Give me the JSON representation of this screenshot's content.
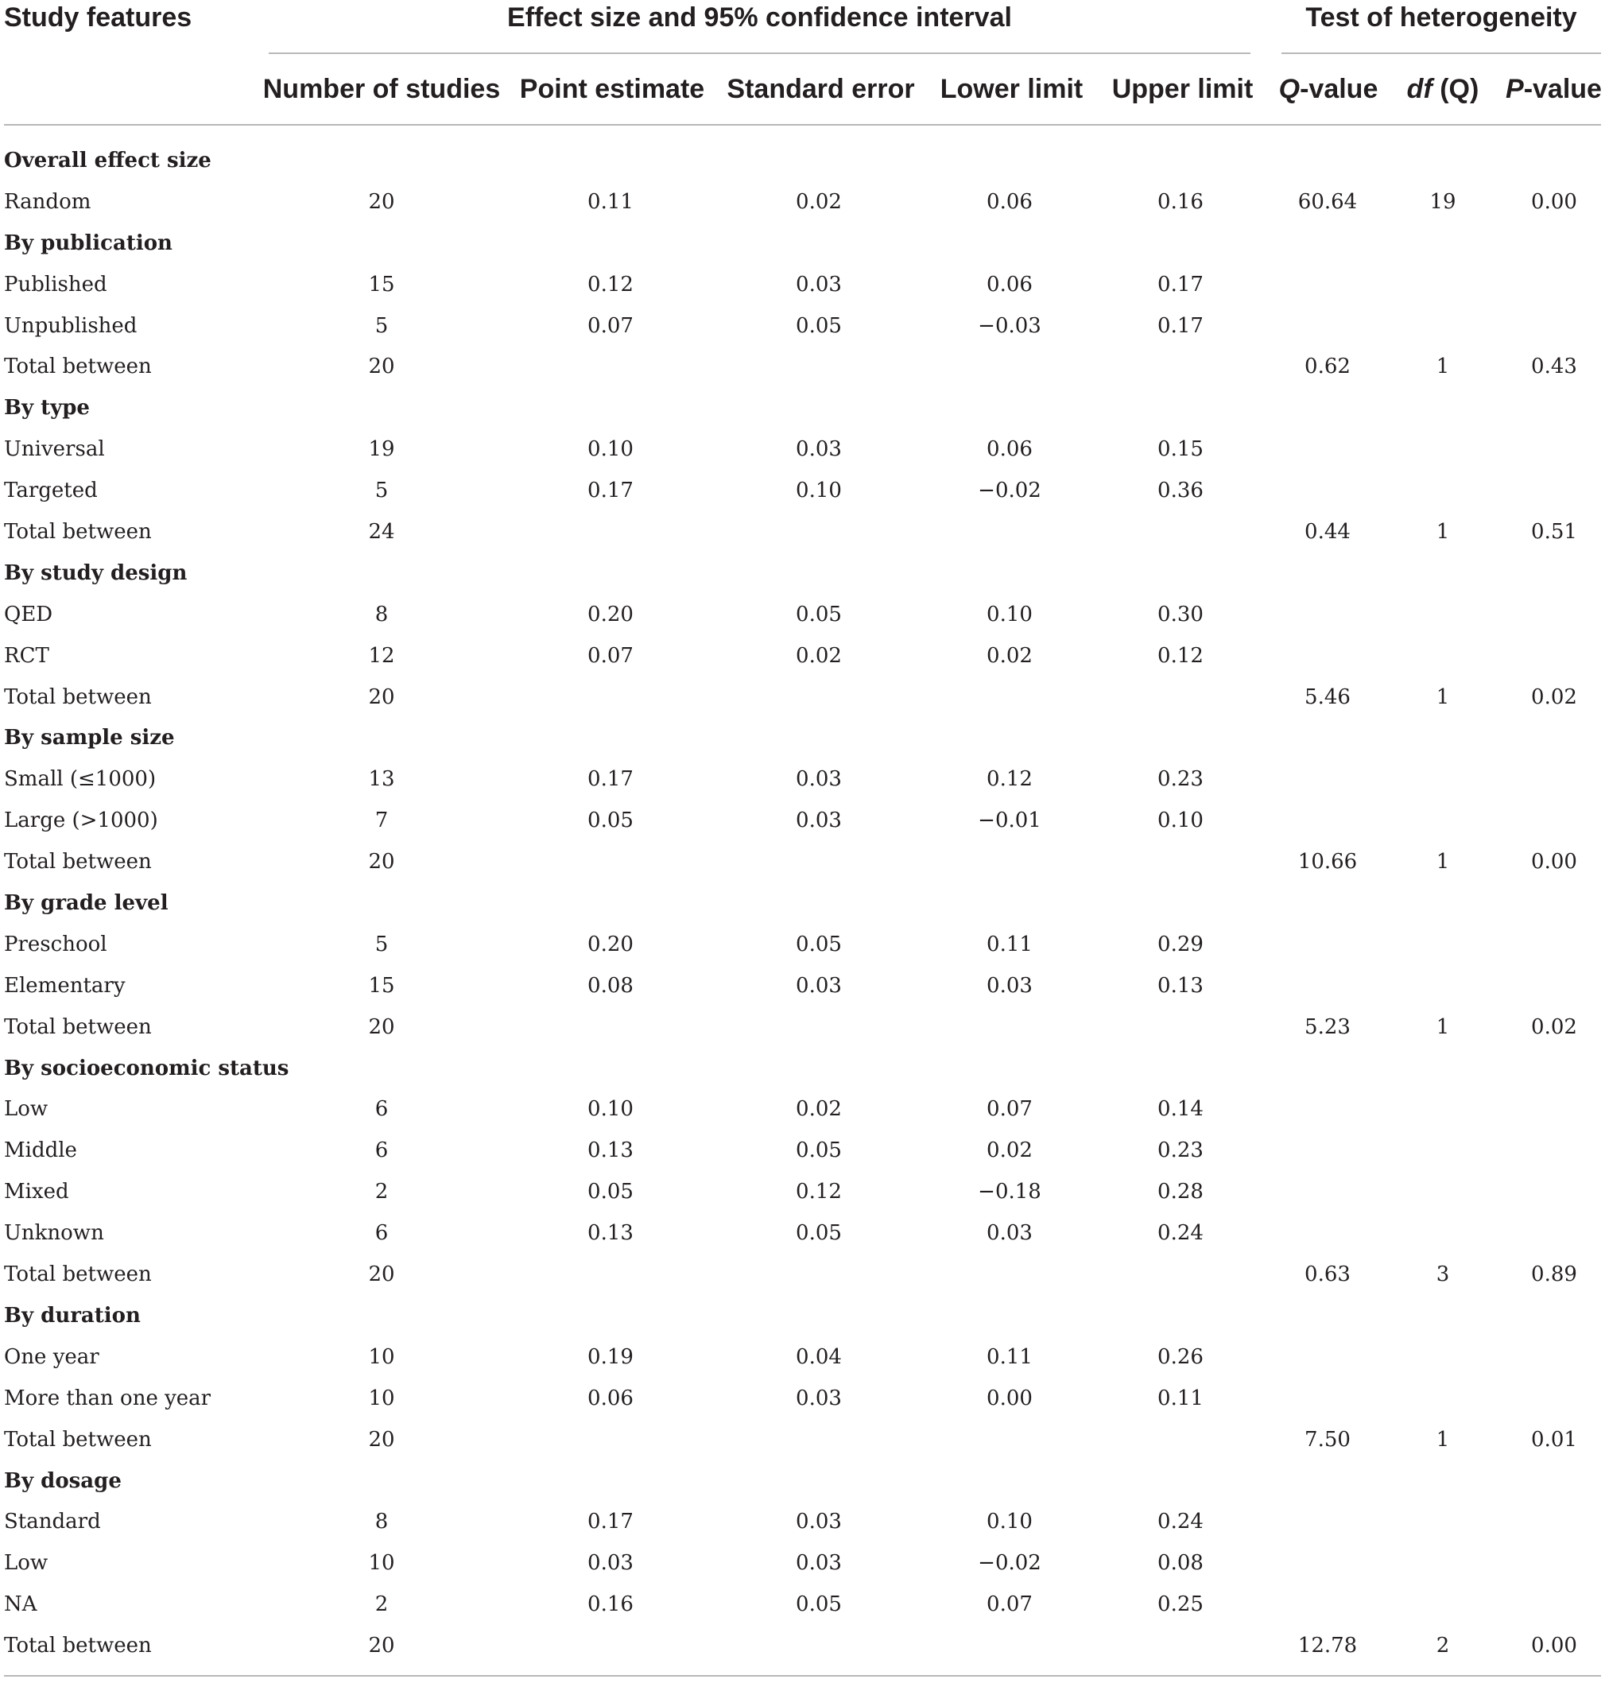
{
  "table": {
    "group_headers": {
      "study_features": "Study features",
      "effect_size": "Effect size and 95% confidence interval",
      "heterogeneity": "Test of heterogeneity"
    },
    "columns": {
      "number_of_studies": "Number of studies",
      "point_estimate": "Point estimate",
      "standard_error": "Standard error",
      "lower_limit": "Lower limit",
      "upper_limit": "Upper limit",
      "q_value_italic": "Q",
      "q_value_rest": "-value",
      "df_italic": "df",
      "df_rest": " (Q)",
      "p_value_italic": "P",
      "p_value_rest": "-value"
    },
    "rows": [
      {
        "type": "section",
        "label": "Overall effect size"
      },
      {
        "type": "data",
        "label": "Random",
        "n": "20",
        "pe": "0.11",
        "se": "0.02",
        "ll": "0.06",
        "ul": "0.16",
        "q": "60.64",
        "df": "19",
        "p": "0.00"
      },
      {
        "type": "section",
        "label": "By publication"
      },
      {
        "type": "data",
        "label": "Published",
        "n": "15",
        "pe": "0.12",
        "se": "0.03",
        "ll": "0.06",
        "ul": "0.17",
        "q": "",
        "df": "",
        "p": ""
      },
      {
        "type": "data",
        "label": "Unpublished",
        "n": "5",
        "pe": "0.07",
        "se": "0.05",
        "ll": "−0.03",
        "ul": "0.17",
        "q": "",
        "df": "",
        "p": ""
      },
      {
        "type": "data",
        "label": "Total between",
        "n": "20",
        "pe": "",
        "se": "",
        "ll": "",
        "ul": "",
        "q": "0.62",
        "df": "1",
        "p": "0.43"
      },
      {
        "type": "section",
        "label": "By type"
      },
      {
        "type": "data",
        "label": "Universal",
        "n": "19",
        "pe": "0.10",
        "se": "0.03",
        "ll": "0.06",
        "ul": "0.15",
        "q": "",
        "df": "",
        "p": ""
      },
      {
        "type": "data",
        "label": "Targeted",
        "n": "5",
        "pe": "0.17",
        "se": "0.10",
        "ll": "−0.02",
        "ul": "0.36",
        "q": "",
        "df": "",
        "p": ""
      },
      {
        "type": "data",
        "label": "Total between",
        "n": "24",
        "pe": "",
        "se": "",
        "ll": "",
        "ul": "",
        "q": "0.44",
        "df": "1",
        "p": "0.51"
      },
      {
        "type": "section",
        "label": "By study design"
      },
      {
        "type": "data",
        "label": "QED",
        "n": "8",
        "pe": "0.20",
        "se": "0.05",
        "ll": "0.10",
        "ul": "0.30",
        "q": "",
        "df": "",
        "p": ""
      },
      {
        "type": "data",
        "label": "RCT",
        "n": "12",
        "pe": "0.07",
        "se": "0.02",
        "ll": "0.02",
        "ul": "0.12",
        "q": "",
        "df": "",
        "p": ""
      },
      {
        "type": "data",
        "label": "Total between",
        "n": "20",
        "pe": "",
        "se": "",
        "ll": "",
        "ul": "",
        "q": "5.46",
        "df": "1",
        "p": "0.02"
      },
      {
        "type": "section",
        "label": "By sample size"
      },
      {
        "type": "data",
        "label": "Small (≤1000)",
        "n": "13",
        "pe": "0.17",
        "se": "0.03",
        "ll": "0.12",
        "ul": "0.23",
        "q": "",
        "df": "",
        "p": ""
      },
      {
        "type": "data",
        "label": "Large (>1000)",
        "n": "7",
        "pe": "0.05",
        "se": "0.03",
        "ll": "−0.01",
        "ul": "0.10",
        "q": "",
        "df": "",
        "p": ""
      },
      {
        "type": "data",
        "label": "Total between",
        "n": "20",
        "pe": "",
        "se": "",
        "ll": "",
        "ul": "",
        "q": "10.66",
        "df": "1",
        "p": "0.00"
      },
      {
        "type": "section",
        "label": "By grade level"
      },
      {
        "type": "data",
        "label": "Preschool",
        "n": "5",
        "pe": "0.20",
        "se": "0.05",
        "ll": "0.11",
        "ul": "0.29",
        "q": "",
        "df": "",
        "p": ""
      },
      {
        "type": "data",
        "label": "Elementary",
        "n": "15",
        "pe": "0.08",
        "se": "0.03",
        "ll": "0.03",
        "ul": "0.13",
        "q": "",
        "df": "",
        "p": ""
      },
      {
        "type": "data",
        "label": "Total between",
        "n": "20",
        "pe": "",
        "se": "",
        "ll": "",
        "ul": "",
        "q": "5.23",
        "df": "1",
        "p": "0.02"
      },
      {
        "type": "section",
        "label": "By socioeconomic status"
      },
      {
        "type": "data",
        "label": "Low",
        "n": "6",
        "pe": "0.10",
        "se": "0.02",
        "ll": "0.07",
        "ul": "0.14",
        "q": "",
        "df": "",
        "p": ""
      },
      {
        "type": "data",
        "label": "Middle",
        "n": "6",
        "pe": "0.13",
        "se": "0.05",
        "ll": "0.02",
        "ul": "0.23",
        "q": "",
        "df": "",
        "p": ""
      },
      {
        "type": "data",
        "label": "Mixed",
        "n": "2",
        "pe": "0.05",
        "se": "0.12",
        "ll": "−0.18",
        "ul": "0.28",
        "q": "",
        "df": "",
        "p": ""
      },
      {
        "type": "data",
        "label": "Unknown",
        "n": "6",
        "pe": "0.13",
        "se": "0.05",
        "ll": "0.03",
        "ul": "0.24",
        "q": "",
        "df": "",
        "p": ""
      },
      {
        "type": "data",
        "label": "Total between",
        "n": "20",
        "pe": "",
        "se": "",
        "ll": "",
        "ul": "",
        "q": "0.63",
        "df": "3",
        "p": "0.89"
      },
      {
        "type": "section",
        "label": "By duration"
      },
      {
        "type": "data",
        "label": "One year",
        "n": "10",
        "pe": "0.19",
        "se": "0.04",
        "ll": "0.11",
        "ul": "0.26",
        "q": "",
        "df": "",
        "p": ""
      },
      {
        "type": "data",
        "label": "More than one year",
        "n": "10",
        "pe": "0.06",
        "se": "0.03",
        "ll": "0.00",
        "ul": "0.11",
        "q": "",
        "df": "",
        "p": ""
      },
      {
        "type": "data",
        "label": "Total between",
        "n": "20",
        "pe": "",
        "se": "",
        "ll": "",
        "ul": "",
        "q": "7.50",
        "df": "1",
        "p": "0.01"
      },
      {
        "type": "section",
        "label": "By dosage"
      },
      {
        "type": "data",
        "label": "Standard",
        "n": "8",
        "pe": "0.17",
        "se": "0.03",
        "ll": "0.10",
        "ul": "0.24",
        "q": "",
        "df": "",
        "p": ""
      },
      {
        "type": "data",
        "label": "Low",
        "n": "10",
        "pe": "0.03",
        "se": "0.03",
        "ll": "−0.02",
        "ul": "0.08",
        "q": "",
        "df": "",
        "p": ""
      },
      {
        "type": "data",
        "label": "NA",
        "n": "2",
        "pe": "0.16",
        "se": "0.05",
        "ll": "0.07",
        "ul": "0.25",
        "q": "",
        "df": "",
        "p": ""
      },
      {
        "type": "data",
        "label": "Total between",
        "n": "20",
        "pe": "",
        "se": "",
        "ll": "",
        "ul": "",
        "q": "12.78",
        "df": "2",
        "p": "0.00"
      }
    ]
  }
}
